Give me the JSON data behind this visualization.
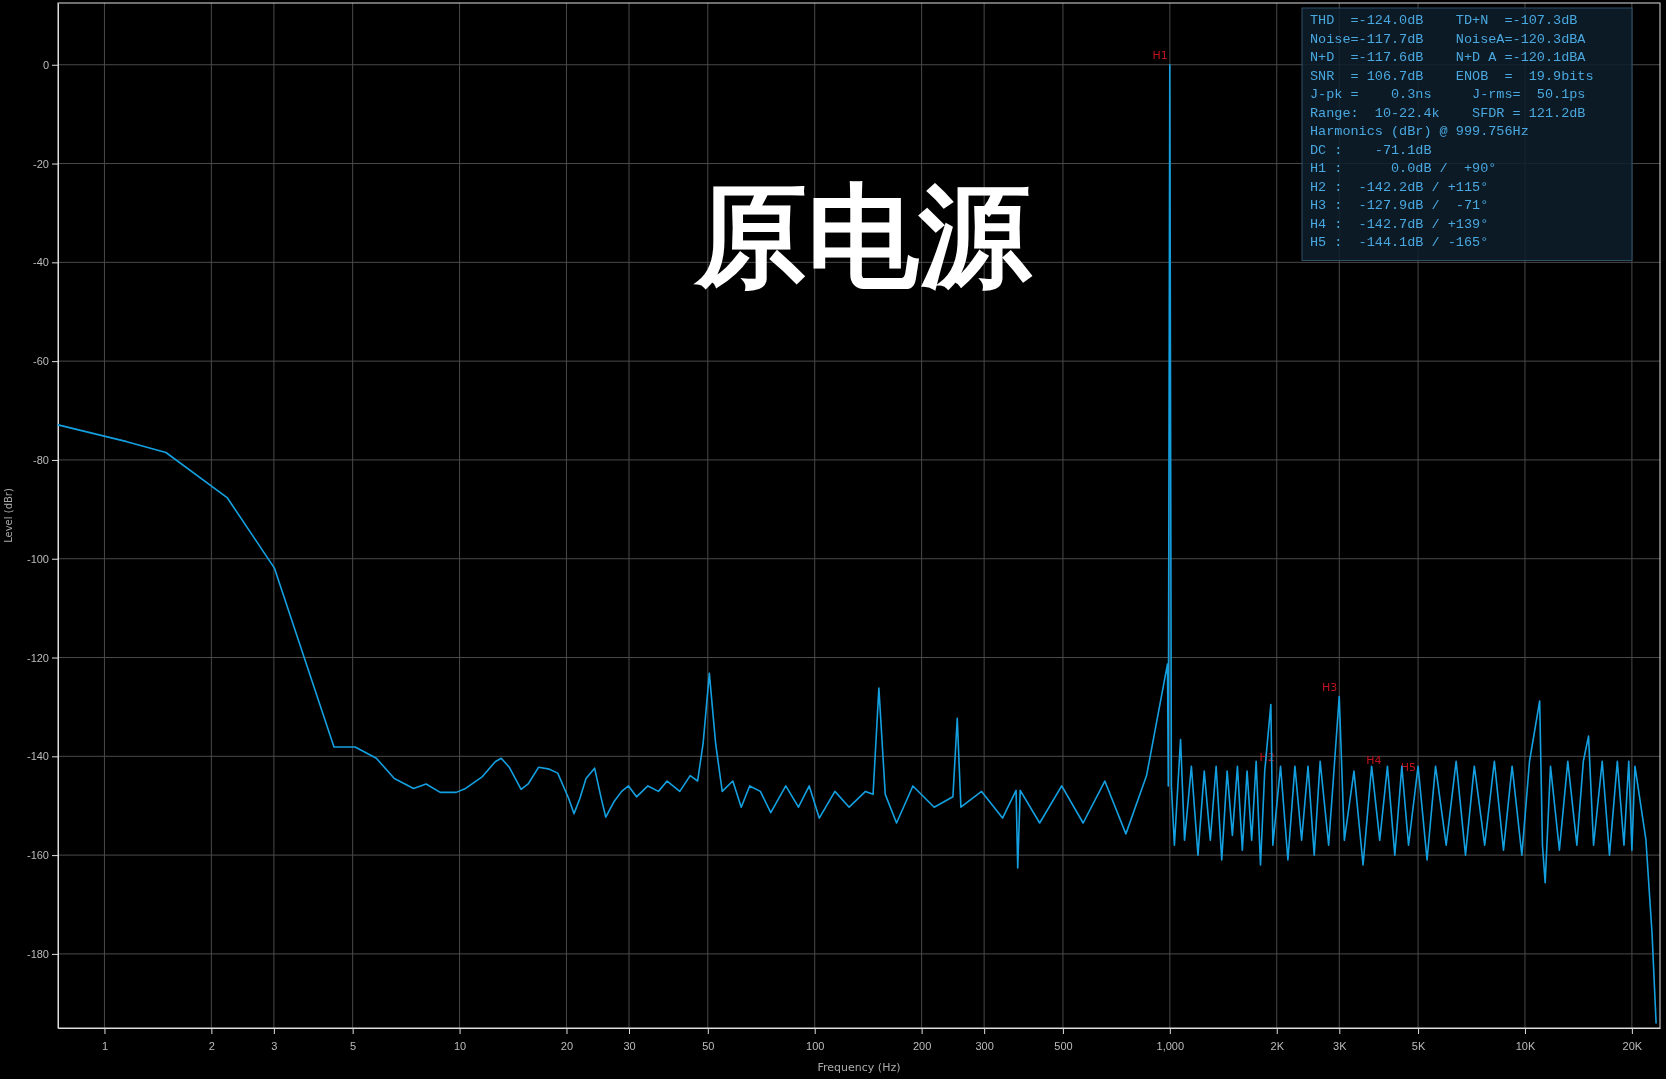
{
  "chart_data": {
    "type": "line",
    "title": "原电源",
    "xlabel": "Frequency (Hz)",
    "ylabel": "Level (dBr)",
    "log": "x",
    "grid": true,
    "marker": "none",
    "line_style": "solid",
    "xlim": [
      0.74,
      24000
    ],
    "ylim": [
      -195,
      12.5
    ],
    "xticks": [
      1,
      2,
      3,
      5,
      10,
      20,
      30,
      50,
      100,
      200,
      300,
      500,
      {
        "value": 1000,
        "label": "1,000"
      },
      {
        "value": 2000,
        "label": "2K"
      },
      {
        "value": 3000,
        "label": "3K"
      },
      {
        "value": 5000,
        "label": "5K"
      },
      {
        "value": 10000,
        "label": "10K"
      },
      {
        "value": 20000,
        "label": "20K"
      }
    ],
    "yticks": [
      0,
      -20,
      -40,
      -60,
      -80,
      -100,
      -120,
      -140,
      -160,
      -180
    ],
    "annotations": [
      "THD  =-124.0dB    TD+N  =-107.3dB",
      "Noise=-117.7dB    NoiseA=-120.3dBA",
      "N+D  =-117.6dB    N+D A =-120.1dBA",
      "SNR  = 106.7dB    ENOB  =  19.9bits",
      "J-pk =    0.3ns     J-rms=  50.1ps",
      "Range:  10-22.4k    SFDR = 121.2dB",
      "Harmonics (dBr) @ 999.756Hz",
      "DC :    -71.1dB",
      "H1 :      0.0dB /  +90°",
      "H2 :  -142.2dB / +115°",
      "H3 :  -127.9dB /  -71°",
      "H4 :  -142.7dB / +139°",
      "H5 :  -144.1dB / -165°",
      {
        "text": "H1",
        "x": 999.756,
        "y": 0
      },
      {
        "text": "H2",
        "x": 1999,
        "y": -142.2
      },
      {
        "text": "H3",
        "x": 2999,
        "y": -127.9
      },
      {
        "text": "H4",
        "x": 3999,
        "y": -142.7
      },
      {
        "text": "H5",
        "x": 4999,
        "y": -144.1
      }
    ],
    "series": [
      {
        "color": "#14a0e0",
        "x": [
          0.74,
          1.156,
          1.49,
          2.22,
          3.01,
          4.43,
          5.08,
          5.83,
          6.55,
          7.42,
          8.05,
          8.82,
          9.78,
          10.4,
          11.6,
          12.6,
          13.1,
          13.8,
          14.9,
          15.6,
          16.7,
          17.9,
          18.9,
          20.3,
          21.0,
          21.8,
          22.7,
          24.0,
          25.0,
          25.8,
          27.2,
          28.6,
          29.9,
          31.5,
          33.9,
          36.3,
          38.4,
          41.7,
          44.6,
          46.8,
          48.5,
          50.5,
          52.6,
          54.9,
          58.8,
          62.1,
          65.6,
          70.3,
          75.2,
          82.9,
          90.0,
          96.5,
          103,
          114,
          125,
          139,
          146,
          151.6,
          158,
          170,
          189,
          217,
          245,
          252,
          258,
          295,
          338,
          369,
          373,
          379,
          430,
          496,
          570,
          656,
          752,
          860,
          985,
          990,
          999.756,
          1010,
          1030,
          1072,
          1100,
          1150,
          1200,
          1250,
          1300,
          1350,
          1400,
          1450,
          1500,
          1550,
          1600,
          1650,
          1700,
          1750,
          1800,
          1850,
          1925,
          1950,
          2050,
          2150,
          2250,
          2350,
          2450,
          2550,
          2650,
          2800,
          2999,
          3100,
          3300,
          3500,
          3700,
          3900,
          4100,
          4300,
          4500,
          4700,
          5000,
          5300,
          5600,
          6000,
          6400,
          6800,
          7200,
          7700,
          8200,
          8700,
          9200,
          9800,
          10300,
          11000,
          11200,
          11400,
          11800,
          12500,
          13200,
          14000,
          14600,
          15100,
          15600,
          16500,
          17300,
          18200,
          19000,
          19600,
          20000,
          20400,
          21900,
          22800,
          23400
        ],
        "values": [
          -72.9,
          -76.3,
          -78.5,
          -87.7,
          -101.9,
          -138.1,
          -138.1,
          -140.4,
          -144.5,
          -146.5,
          -145.6,
          -147.3,
          -147.3,
          -146.5,
          -144.1,
          -141.1,
          -140.4,
          -142.2,
          -146.7,
          -145.6,
          -142.2,
          -142.6,
          -143.4,
          -148.6,
          -151.6,
          -148.6,
          -144.5,
          -142.4,
          -148.2,
          -152.3,
          -149.2,
          -147.1,
          -146,
          -148.2,
          -146,
          -147.1,
          -145,
          -147.1,
          -143.9,
          -145,
          -137.4,
          -123.2,
          -137.4,
          -147.1,
          -145,
          -150.3,
          -146,
          -147.1,
          -151.4,
          -146,
          -150.3,
          -146,
          -152.5,
          -147.1,
          -150.3,
          -147.1,
          -147.7,
          -126.2,
          -147.7,
          -153.5,
          -146,
          -150.3,
          -148.2,
          -132.3,
          -150.3,
          -147.1,
          -152.5,
          -146.9,
          -162.6,
          -146.9,
          -153.5,
          -146,
          -153.5,
          -145,
          -155.7,
          -143.9,
          -121.3,
          -146,
          0,
          -146,
          -158,
          -136.6,
          -157,
          -142,
          -160,
          -143,
          -157,
          -142,
          -161,
          -143,
          -156,
          -142,
          -159,
          -143,
          -157,
          -141,
          -162,
          -143,
          -129.5,
          -158,
          -142,
          -161,
          -142,
          -157,
          -142,
          -160,
          -141,
          -158,
          -127.9,
          -157,
          -143,
          -162,
          -142,
          -157,
          -142,
          -160,
          -142,
          -158,
          -142,
          -161,
          -142,
          -158,
          -141,
          -160,
          -142,
          -158,
          -141,
          -159,
          -142,
          -160,
          -141,
          -128.8,
          -158,
          -165.6,
          -142,
          -159,
          -141,
          -158,
          -141,
          -135.9,
          -158,
          -141,
          -160,
          -141,
          -158,
          -141,
          -159,
          -142,
          -156.8,
          -176,
          -194
        ]
      }
    ]
  }
}
